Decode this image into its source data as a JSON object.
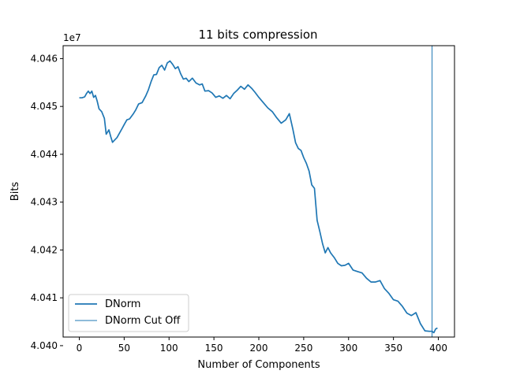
{
  "chart_data": {
    "type": "line",
    "title": "11 bits compression",
    "xlabel": "Number of Components",
    "ylabel": "Bits",
    "y_offset_text": "1e7",
    "xlim": [
      -18,
      418
    ],
    "ylim": [
      4.04018,
      4.04627
    ],
    "x_ticks": [
      0,
      50,
      100,
      150,
      200,
      250,
      300,
      350,
      400
    ],
    "x_tick_labels": [
      "0",
      "50",
      "100",
      "150",
      "200",
      "250",
      "300",
      "350",
      "400"
    ],
    "y_ticks": [
      4.04,
      4.041,
      4.042,
      4.043,
      4.044,
      4.045,
      4.046
    ],
    "y_tick_labels": [
      "4.040",
      "4.041",
      "4.042",
      "4.043",
      "4.044",
      "4.045",
      "4.046"
    ],
    "legend": {
      "location": "lower-left",
      "entries": [
        "DNorm",
        "DNorm Cut Off"
      ]
    },
    "series": [
      {
        "name": "DNorm",
        "color": "#1f77b4",
        "x": [
          0,
          3,
          6,
          8,
          10,
          12,
          14,
          16,
          18,
          20,
          22,
          25,
          28,
          30,
          33,
          35,
          37,
          39,
          42,
          45,
          48,
          50,
          53,
          56,
          60,
          63,
          66,
          70,
          74,
          77,
          80,
          83,
          86,
          89,
          92,
          95,
          98,
          101,
          104,
          107,
          110,
          113,
          116,
          119,
          122,
          126,
          130,
          134,
          137,
          140,
          144,
          148,
          152,
          156,
          160,
          164,
          168,
          172,
          176,
          180,
          184,
          188,
          192,
          196,
          200,
          205,
          210,
          215,
          220,
          225,
          230,
          234,
          238,
          241,
          244,
          247,
          250,
          253,
          256,
          259,
          262,
          265,
          268,
          271,
          274,
          277,
          280,
          284,
          288,
          292,
          296,
          300,
          305,
          310,
          315,
          320,
          325,
          330,
          335,
          340,
          345,
          350,
          355,
          360,
          365,
          370,
          375,
          380,
          385,
          390,
          393,
          395,
          397,
          399
        ],
        "values": [
          4.04518,
          4.04518,
          4.0452,
          4.04527,
          4.04532,
          4.04527,
          4.04532,
          4.04519,
          4.04523,
          4.04511,
          4.04495,
          4.04489,
          4.04475,
          4.04442,
          4.04451,
          4.04437,
          4.04425,
          4.04429,
          4.04435,
          4.04445,
          4.04455,
          4.04462,
          4.04472,
          4.04474,
          4.04484,
          4.04493,
          4.04505,
          4.04508,
          4.04522,
          4.04535,
          4.04552,
          4.04566,
          4.04567,
          4.04581,
          4.04586,
          4.04576,
          4.04591,
          4.04595,
          4.04588,
          4.04579,
          4.04583,
          4.04568,
          4.04557,
          4.04559,
          4.04552,
          4.04559,
          4.04549,
          4.04545,
          4.04547,
          4.04532,
          4.04533,
          4.04528,
          4.04519,
          4.04522,
          4.04517,
          4.04523,
          4.04516,
          4.04527,
          4.04534,
          4.04542,
          4.04536,
          4.04545,
          4.04538,
          4.04529,
          4.04519,
          4.04508,
          4.04497,
          4.04489,
          4.04476,
          4.04465,
          4.04472,
          4.04485,
          4.04452,
          4.04424,
          4.04412,
          4.04408,
          4.04393,
          4.04381,
          4.04365,
          4.04336,
          4.04329,
          4.04262,
          4.04238,
          4.04213,
          4.04194,
          4.04205,
          4.04194,
          4.04184,
          4.04172,
          4.04167,
          4.04168,
          4.04172,
          4.04158,
          4.04155,
          4.04152,
          4.04141,
          4.04133,
          4.04133,
          4.04136,
          4.04119,
          4.04109,
          4.04096,
          4.04093,
          4.04082,
          4.04068,
          4.04063,
          4.04069,
          4.04046,
          4.04031,
          4.0403,
          4.0403,
          4.04027,
          4.04035,
          4.04037
        ]
      },
      {
        "name": "DNorm Cut Off",
        "color": "#1f77b4",
        "vertical_x": 393
      }
    ]
  }
}
